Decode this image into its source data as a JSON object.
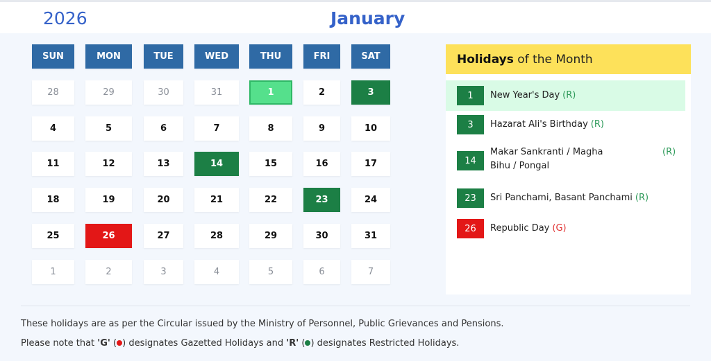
{
  "header": {
    "year": "2026",
    "month": "January"
  },
  "calendar": {
    "weekdays": [
      "SUN",
      "MON",
      "TUE",
      "WED",
      "THU",
      "FRI",
      "SAT"
    ],
    "weeks": [
      [
        {
          "d": "28",
          "t": "other"
        },
        {
          "d": "29",
          "t": "other"
        },
        {
          "d": "30",
          "t": "other"
        },
        {
          "d": "31",
          "t": "other"
        },
        {
          "d": "1",
          "t": "today"
        },
        {
          "d": "2",
          "t": ""
        },
        {
          "d": "3",
          "t": "restricted"
        }
      ],
      [
        {
          "d": "4",
          "t": ""
        },
        {
          "d": "5",
          "t": ""
        },
        {
          "d": "6",
          "t": ""
        },
        {
          "d": "7",
          "t": ""
        },
        {
          "d": "8",
          "t": ""
        },
        {
          "d": "9",
          "t": ""
        },
        {
          "d": "10",
          "t": ""
        }
      ],
      [
        {
          "d": "11",
          "t": ""
        },
        {
          "d": "12",
          "t": ""
        },
        {
          "d": "13",
          "t": ""
        },
        {
          "d": "14",
          "t": "restricted"
        },
        {
          "d": "15",
          "t": ""
        },
        {
          "d": "16",
          "t": ""
        },
        {
          "d": "17",
          "t": ""
        }
      ],
      [
        {
          "d": "18",
          "t": ""
        },
        {
          "d": "19",
          "t": ""
        },
        {
          "d": "20",
          "t": ""
        },
        {
          "d": "21",
          "t": ""
        },
        {
          "d": "22",
          "t": ""
        },
        {
          "d": "23",
          "t": "restricted"
        },
        {
          "d": "24",
          "t": ""
        }
      ],
      [
        {
          "d": "25",
          "t": ""
        },
        {
          "d": "26",
          "t": "gazetted"
        },
        {
          "d": "27",
          "t": ""
        },
        {
          "d": "28",
          "t": ""
        },
        {
          "d": "29",
          "t": ""
        },
        {
          "d": "30",
          "t": ""
        },
        {
          "d": "31",
          "t": ""
        }
      ],
      [
        {
          "d": "1",
          "t": "other"
        },
        {
          "d": "2",
          "t": "other"
        },
        {
          "d": "3",
          "t": "other"
        },
        {
          "d": "4",
          "t": "other"
        },
        {
          "d": "5",
          "t": "other"
        },
        {
          "d": "6",
          "t": "other"
        },
        {
          "d": "7",
          "t": "other"
        }
      ]
    ]
  },
  "holidays_panel": {
    "title_bold": "Holidays",
    "title_rest": " of the Month",
    "items": [
      {
        "day": "1",
        "name": "New Year's Day",
        "type": "(R)",
        "selected": true
      },
      {
        "day": "3",
        "name": "Hazarat Ali's Birthday",
        "type": "(R)"
      },
      {
        "day": "14",
        "name": "Makar Sankranti / Magha Bihu / Pongal",
        "type": "(R)"
      },
      {
        "day": "23",
        "name": "Sri Panchami, Basant Panchami",
        "type": "(R)"
      },
      {
        "day": "26",
        "name": "Republic Day",
        "type": "(G)"
      }
    ]
  },
  "footer": {
    "note1": "These holidays are as per the Circular issued by the Ministry of Personnel, Public Grievances and Pensions.",
    "note2_a": "Please note that ",
    "note2_g": "'G'",
    "note2_b": " designates Gazetted Holidays and ",
    "note2_r": "'R'",
    "note2_c": " designates Restricted Holidays."
  },
  "colors": {
    "restricted": "#1c7f45",
    "gazetted": "#e31717",
    "today": "#55e08c",
    "header": "#2f6aa5",
    "accent": "#3562c9",
    "panel_head": "#fde15a"
  }
}
